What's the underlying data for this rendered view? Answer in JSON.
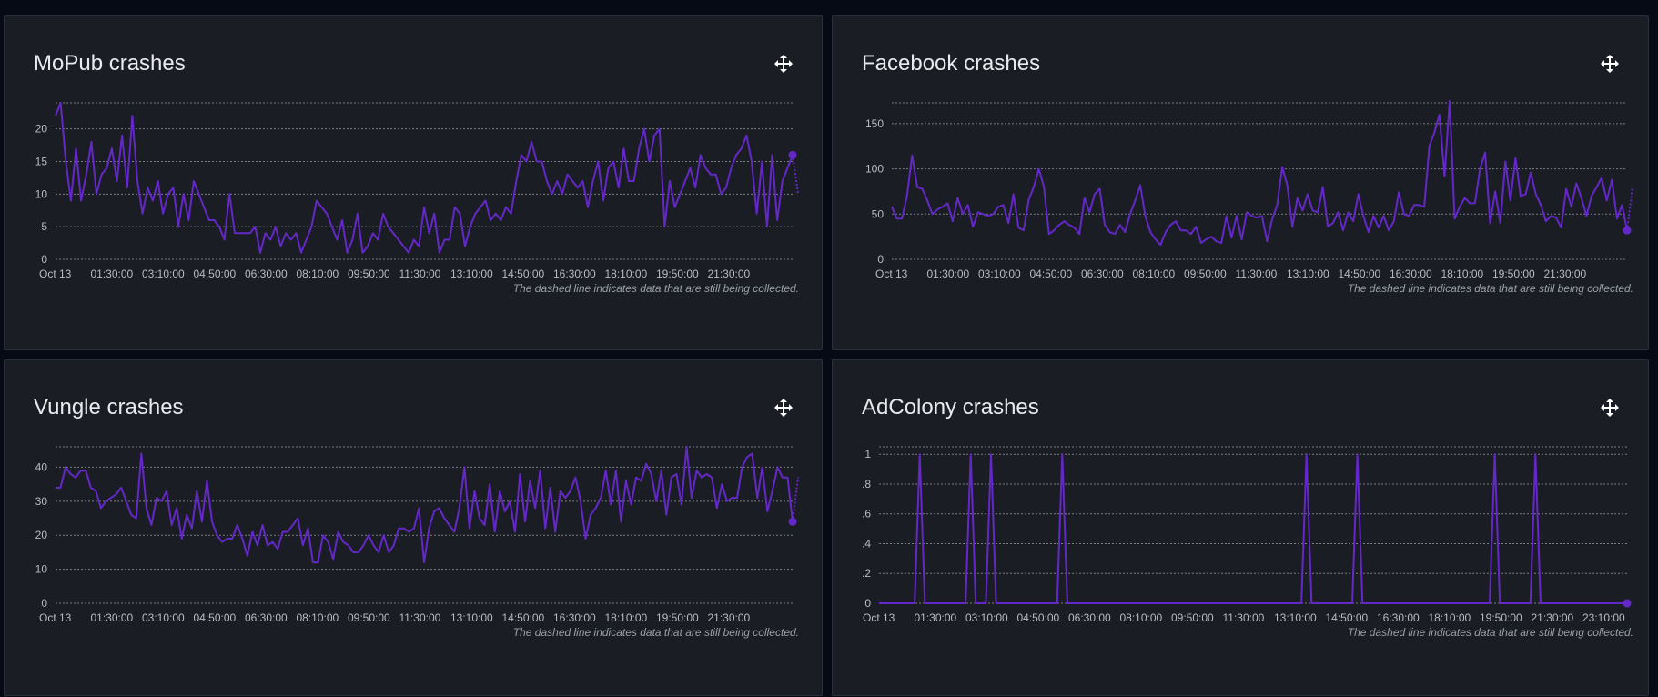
{
  "colors": {
    "background": "#060a15",
    "panel": "#1a1d24",
    "line": "#6428c8",
    "grid": "#c9ccd1",
    "text": "#b7bbc3"
  },
  "icons": {
    "move": "move-arrows-icon"
  },
  "chart_data": [
    {
      "type": "line",
      "title": "MoPub crashes",
      "note": "The dashed line indicates data that are still being collected.",
      "x_tick_labels": [
        "Oct 13",
        "01:30:00",
        "03:10:00",
        "04:50:00",
        "06:30:00",
        "08:10:00",
        "09:50:00",
        "11:30:00",
        "13:10:00",
        "14:50:00",
        "16:30:00",
        "18:10:00",
        "19:50:00",
        "21:30:00"
      ],
      "y_tick_labels": [
        "0",
        "5",
        "10",
        "15",
        "20"
      ],
      "y_ticks": [
        0,
        5,
        10,
        15,
        20
      ],
      "ylim": [
        0,
        24
      ],
      "xlim": [
        0,
        143
      ],
      "grid": true,
      "series": [
        {
          "values": [
            22,
            24,
            15,
            9,
            17,
            9,
            13,
            18,
            10,
            13,
            14,
            17,
            12,
            19,
            11,
            22,
            12,
            7,
            11,
            9,
            12,
            7,
            10,
            11,
            5,
            10,
            6,
            12,
            10,
            8,
            6,
            6,
            5,
            3,
            10,
            4,
            4,
            4,
            4,
            5,
            1,
            4,
            3,
            5,
            2,
            4,
            3,
            4,
            1,
            3,
            5,
            9,
            8,
            7,
            5,
            3,
            6,
            1,
            3,
            7,
            1,
            2,
            4,
            3,
            7,
            5,
            4,
            3,
            2,
            1,
            3,
            2,
            8,
            4,
            7,
            1,
            3,
            3,
            8,
            7,
            2,
            5,
            7,
            8,
            9,
            6,
            7,
            6,
            8,
            7,
            12,
            16,
            15,
            18,
            15,
            15,
            12,
            10,
            12,
            10,
            13,
            12,
            11,
            12,
            8,
            12,
            15,
            9,
            14,
            15,
            11,
            17,
            12,
            12,
            17,
            20,
            15,
            19,
            20,
            5,
            12,
            8,
            10,
            12,
            14,
            11,
            16,
            14,
            13,
            13,
            10,
            11,
            14,
            16,
            17,
            19,
            15,
            7,
            15,
            5,
            16,
            6,
            12,
            14,
            16
          ],
          "pending_value": 10
        }
      ]
    },
    {
      "type": "line",
      "title": "Facebook crashes",
      "note": "The dashed line indicates data that are still being collected.",
      "x_tick_labels": [
        "Oct 13",
        "01:30:00",
        "03:10:00",
        "04:50:00",
        "06:30:00",
        "08:10:00",
        "09:50:00",
        "11:30:00",
        "13:10:00",
        "14:50:00",
        "16:30:00",
        "18:10:00",
        "19:50:00",
        "21:30:00"
      ],
      "y_tick_labels": [
        "0",
        "50",
        "100",
        "150"
      ],
      "y_ticks": [
        0,
        50,
        100,
        150
      ],
      "ylim": [
        0,
        173
      ],
      "xlim": [
        0,
        143
      ],
      "grid": true,
      "series": [
        {
          "values": [
            58,
            45,
            45,
            70,
            115,
            80,
            78,
            65,
            50,
            55,
            58,
            62,
            42,
            68,
            50,
            60,
            36,
            52,
            50,
            48,
            50,
            58,
            60,
            40,
            72,
            35,
            32,
            66,
            80,
            100,
            80,
            28,
            32,
            38,
            42,
            38,
            35,
            28,
            68,
            52,
            72,
            78,
            38,
            30,
            28,
            38,
            30,
            50,
            65,
            82,
            48,
            30,
            22,
            16,
            30,
            38,
            42,
            32,
            32,
            28,
            36,
            18,
            22,
            25,
            20,
            18,
            48,
            24,
            48,
            22,
            52,
            48,
            46,
            48,
            20,
            44,
            60,
            102,
            82,
            36,
            68,
            54,
            72,
            54,
            52,
            80,
            36,
            40,
            52,
            32,
            52,
            42,
            72,
            48,
            30,
            48,
            35,
            48,
            32,
            42,
            74,
            50,
            48,
            60,
            60,
            58,
            125,
            140,
            160,
            92,
            175,
            45,
            58,
            68,
            62,
            62,
            100,
            118,
            40,
            75,
            40,
            108,
            65,
            112,
            70,
            72,
            96,
            72,
            60,
            42,
            48,
            46,
            35,
            78,
            58,
            84,
            68,
            48,
            70,
            80,
            90,
            65,
            88,
            45,
            60,
            32
          ],
          "pending_value": 80
        }
      ]
    },
    {
      "type": "line",
      "title": "Vungle crashes",
      "note": "The dashed line indicates data that are still being collected.",
      "x_tick_labels": [
        "Oct 13",
        "01:30:00",
        "03:10:00",
        "04:50:00",
        "06:30:00",
        "08:10:00",
        "09:50:00",
        "11:30:00",
        "13:10:00",
        "14:50:00",
        "16:30:00",
        "18:10:00",
        "19:50:00",
        "21:30:00"
      ],
      "y_tick_labels": [
        "0",
        "10",
        "20",
        "30",
        "40"
      ],
      "y_ticks": [
        0,
        10,
        20,
        30,
        40
      ],
      "ylim": [
        0,
        46
      ],
      "xlim": [
        0,
        143
      ],
      "grid": true,
      "series": [
        {
          "values": [
            34,
            34,
            40,
            38,
            37,
            39,
            39,
            34,
            33,
            28,
            30,
            31,
            32,
            34,
            30,
            26,
            25,
            44,
            28,
            23,
            31,
            30,
            33,
            23,
            28,
            19,
            26,
            22,
            33,
            24,
            36,
            24,
            20,
            18,
            19,
            19,
            23,
            19,
            14,
            21,
            17,
            23,
            17,
            18,
            16,
            21,
            21,
            23,
            25,
            17,
            22,
            12,
            12,
            20,
            18,
            13,
            21,
            18,
            17,
            15,
            15,
            17,
            20,
            17,
            15,
            20,
            15,
            17,
            22,
            22,
            21,
            22,
            28,
            12,
            22,
            27,
            28,
            25,
            23,
            21,
            28,
            40,
            22,
            33,
            25,
            23,
            35,
            21,
            33,
            27,
            30,
            21,
            38,
            24,
            36,
            28,
            39,
            22,
            34,
            21,
            33,
            31,
            33,
            37,
            30,
            19,
            26,
            28,
            31,
            39,
            29,
            39,
            24,
            36,
            29,
            37,
            36,
            41,
            38,
            30,
            39,
            26,
            37,
            38,
            29,
            46,
            31,
            39,
            37,
            38,
            37,
            28,
            35,
            30,
            31,
            31,
            40,
            43,
            44,
            31,
            40,
            27,
            33,
            40,
            37,
            37,
            24
          ],
          "pending_value": 37
        }
      ]
    },
    {
      "type": "line",
      "title": "AdColony crashes",
      "note": "The dashed line indicates data that are still being collected.",
      "x_tick_labels": [
        "Oct 13",
        "01:30:00",
        "03:10:00",
        "04:50:00",
        "06:30:00",
        "08:10:00",
        "09:50:00",
        "11:30:00",
        "13:10:00",
        "14:50:00",
        "16:30:00",
        "18:10:00",
        "19:50:00",
        "21:30:00",
        "23:10:00"
      ],
      "y_tick_labels": [
        "0",
        ".2",
        ".4",
        ".6",
        ".8",
        "1"
      ],
      "y_ticks": [
        0,
        0.2,
        0.4,
        0.6,
        0.8,
        1
      ],
      "ylim": [
        0,
        1.05
      ],
      "xlim": [
        0,
        147
      ],
      "grid": true,
      "series": [
        {
          "spikes_at": [
            8,
            18,
            22,
            36,
            84,
            94,
            121,
            129
          ],
          "length": 148,
          "pending_value": 0
        }
      ]
    }
  ]
}
